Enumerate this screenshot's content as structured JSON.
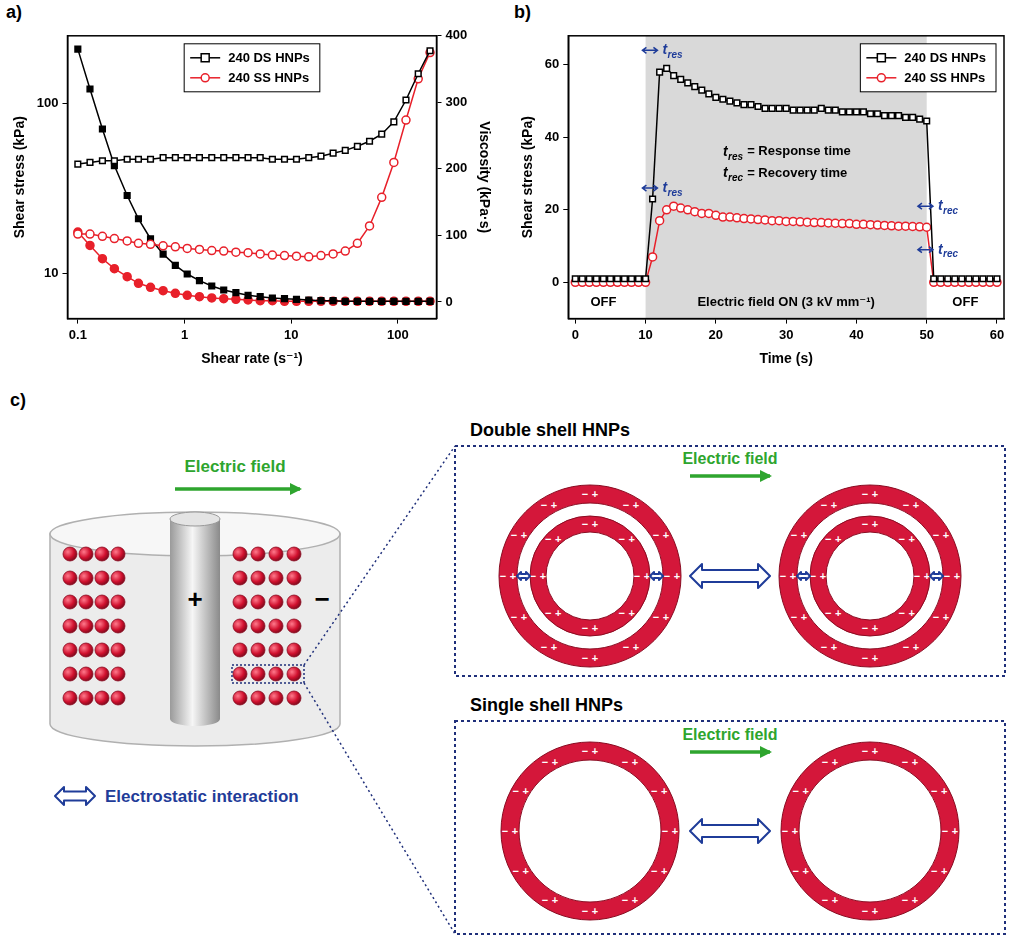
{
  "chart_data": [
    {
      "panel": "a)",
      "type": "line",
      "x_label": "Shear rate (s⁻¹)",
      "y_label": "Shear stress (kPa)",
      "y2_label": "Viscosity (kPa·s)",
      "log": true,
      "grid": false,
      "legend": "upper center",
      "x": [
        0.1,
        0.13,
        0.17,
        0.22,
        0.29,
        0.37,
        0.48,
        0.63,
        0.82,
        1.06,
        1.38,
        1.8,
        2.33,
        3.03,
        3.94,
        5.12,
        6.66,
        8.65,
        11.2,
        14.6,
        19,
        24.7,
        32.1,
        41.7,
        54.2,
        70.5,
        91.6,
        119,
        155,
        200
      ],
      "xlim": [
        0.08,
        230
      ],
      "xticks": [
        0.1,
        1,
        10,
        100
      ],
      "ylim": [
        5.4,
        251
      ],
      "yticks": [
        10,
        100
      ],
      "y2lim": [
        -25,
        400
      ],
      "y2ticks": [
        0,
        100,
        200,
        300,
        400
      ],
      "series": [
        {
          "name": "240 DS HNPs",
          "color": "#000000",
          "marker": "open_square",
          "values": [
            44,
            45,
            46,
            46,
            47,
            47,
            47,
            48,
            48,
            48,
            48,
            48,
            48,
            48,
            48,
            48,
            47,
            47,
            47,
            48,
            49,
            51,
            53,
            56,
            60,
            66,
            78,
            105,
            150,
            205
          ]
        },
        {
          "name": "240 SS HNPs",
          "color": "#e8202a",
          "marker": "open_circle",
          "values": [
            17,
            17,
            16.5,
            16,
            15.5,
            15,
            14.8,
            14.5,
            14.3,
            14,
            13.8,
            13.6,
            13.5,
            13.3,
            13.2,
            13,
            12.8,
            12.7,
            12.6,
            12.5,
            12.7,
            13,
            13.5,
            15,
            19,
            28,
            45,
            80,
            140,
            200
          ]
        },
        {
          "color": "#000000",
          "marker": "square",
          "axis": "y2",
          "values": [
            380,
            320,
            260,
            205,
            160,
            125,
            95,
            72,
            55,
            42,
            32,
            24,
            18,
            14,
            10,
            8,
            6,
            5,
            4,
            3,
            2,
            2,
            1,
            1,
            1,
            1,
            1,
            1,
            1,
            1
          ]
        },
        {
          "color": "#e8202a",
          "marker": "circle",
          "axis": "y2",
          "values": [
            105,
            85,
            65,
            50,
            38,
            28,
            22,
            17,
            13,
            10,
            8,
            6,
            5,
            4,
            3,
            2,
            2,
            1,
            1,
            1,
            1,
            1,
            1,
            1,
            1,
            1,
            1,
            1,
            1,
            1
          ]
        }
      ]
    },
    {
      "panel": "b)",
      "type": "line",
      "x_label": "Time (s)",
      "y_label": "Shear stress (kPa)",
      "grid": false,
      "legend": "upper right",
      "x": [
        0,
        1,
        2,
        3,
        4,
        5,
        6,
        7,
        8,
        9,
        10,
        11,
        12,
        13,
        14,
        15,
        16,
        17,
        18,
        19,
        20,
        21,
        22,
        23,
        24,
        25,
        26,
        27,
        28,
        29,
        30,
        31,
        32,
        33,
        34,
        35,
        36,
        37,
        38,
        39,
        40,
        41,
        42,
        43,
        44,
        45,
        46,
        47,
        48,
        49,
        50,
        51,
        52,
        53,
        54,
        55,
        56,
        57,
        58,
        59,
        60
      ],
      "xlim": [
        -1,
        61
      ],
      "xticks": [
        0,
        10,
        20,
        30,
        40,
        50,
        60
      ],
      "ylim": [
        -10,
        68
      ],
      "yticks": [
        0,
        20,
        40,
        60
      ],
      "shaded_region": [
        10,
        50
      ],
      "annotations": [
        {
          "text": "OFF",
          "x": 4,
          "y": -5.5,
          "color": "#000000"
        },
        {
          "text": "Electric field ON (3 kV mm⁻¹)",
          "x": 30,
          "y": -5.5,
          "color": "#000000"
        },
        {
          "text": "OFF",
          "x": 55.5,
          "y": -5.5,
          "color": "#000000"
        },
        {
          "text": "t",
          "sub": "res",
          "suffix": " = Response time",
          "x": 21,
          "y": 36,
          "color": "#000000"
        },
        {
          "text": "t",
          "sub": "rec",
          "suffix": " = Recovery time",
          "x": 21,
          "y": 30,
          "color": "#000000"
        },
        {
          "text": "t",
          "sub": "res",
          "x": 12.4,
          "y": 64,
          "color": "#1f3c99"
        },
        {
          "text": "t",
          "sub": "res",
          "x": 12.4,
          "y": 26,
          "color": "#1f3c99"
        },
        {
          "text": "t",
          "sub": "rec",
          "x": 51.6,
          "y": 21,
          "color": "#1f3c99"
        },
        {
          "text": "t",
          "sub": "rec",
          "x": 51.6,
          "y": 9,
          "color": "#1f3c99"
        }
      ],
      "series": [
        {
          "name": "240 DS HNPs",
          "color": "#000000",
          "marker": "open_square",
          "values": [
            1,
            1,
            1,
            1,
            1,
            1,
            1,
            1,
            1,
            1,
            1,
            23,
            58,
            59,
            57,
            56,
            55,
            54,
            53,
            52,
            51,
            50.5,
            50,
            49.5,
            49,
            49,
            48.5,
            48,
            48,
            48,
            48,
            47.5,
            47.5,
            47.5,
            47.5,
            48,
            47.5,
            47.5,
            47,
            47,
            47,
            47,
            46.5,
            46.5,
            46,
            46,
            46,
            45.5,
            45.5,
            45,
            44.5,
            1,
            1,
            1,
            1,
            1,
            1,
            1,
            1,
            1,
            1
          ]
        },
        {
          "name": "240 SS HNPs",
          "color": "#e8202a",
          "marker": "open_circle",
          "values": [
            0,
            0,
            0,
            0,
            0,
            0,
            0,
            0,
            0,
            0,
            0,
            7,
            17,
            20,
            21,
            20.5,
            20,
            19.5,
            19,
            19,
            18.5,
            18,
            18,
            17.8,
            17.6,
            17.5,
            17.3,
            17.2,
            17,
            17,
            16.8,
            16.8,
            16.7,
            16.6,
            16.5,
            16.5,
            16.4,
            16.3,
            16.2,
            16.2,
            16,
            16,
            15.9,
            15.8,
            15.7,
            15.6,
            15.5,
            15.5,
            15.4,
            15.3,
            15.2,
            0,
            0,
            0,
            0,
            0,
            0,
            0,
            0,
            0,
            0
          ]
        }
      ]
    }
  ],
  "diagram": {
    "panel": "c)",
    "field_label": "Electric field",
    "electrode_signs": [
      "+",
      "−"
    ],
    "charge_signs": [
      "−",
      "+"
    ],
    "double_shell_title": "Double shell HNPs",
    "single_shell_title": "Single shell HNPs",
    "interaction_label": "Electrostatic interaction"
  }
}
